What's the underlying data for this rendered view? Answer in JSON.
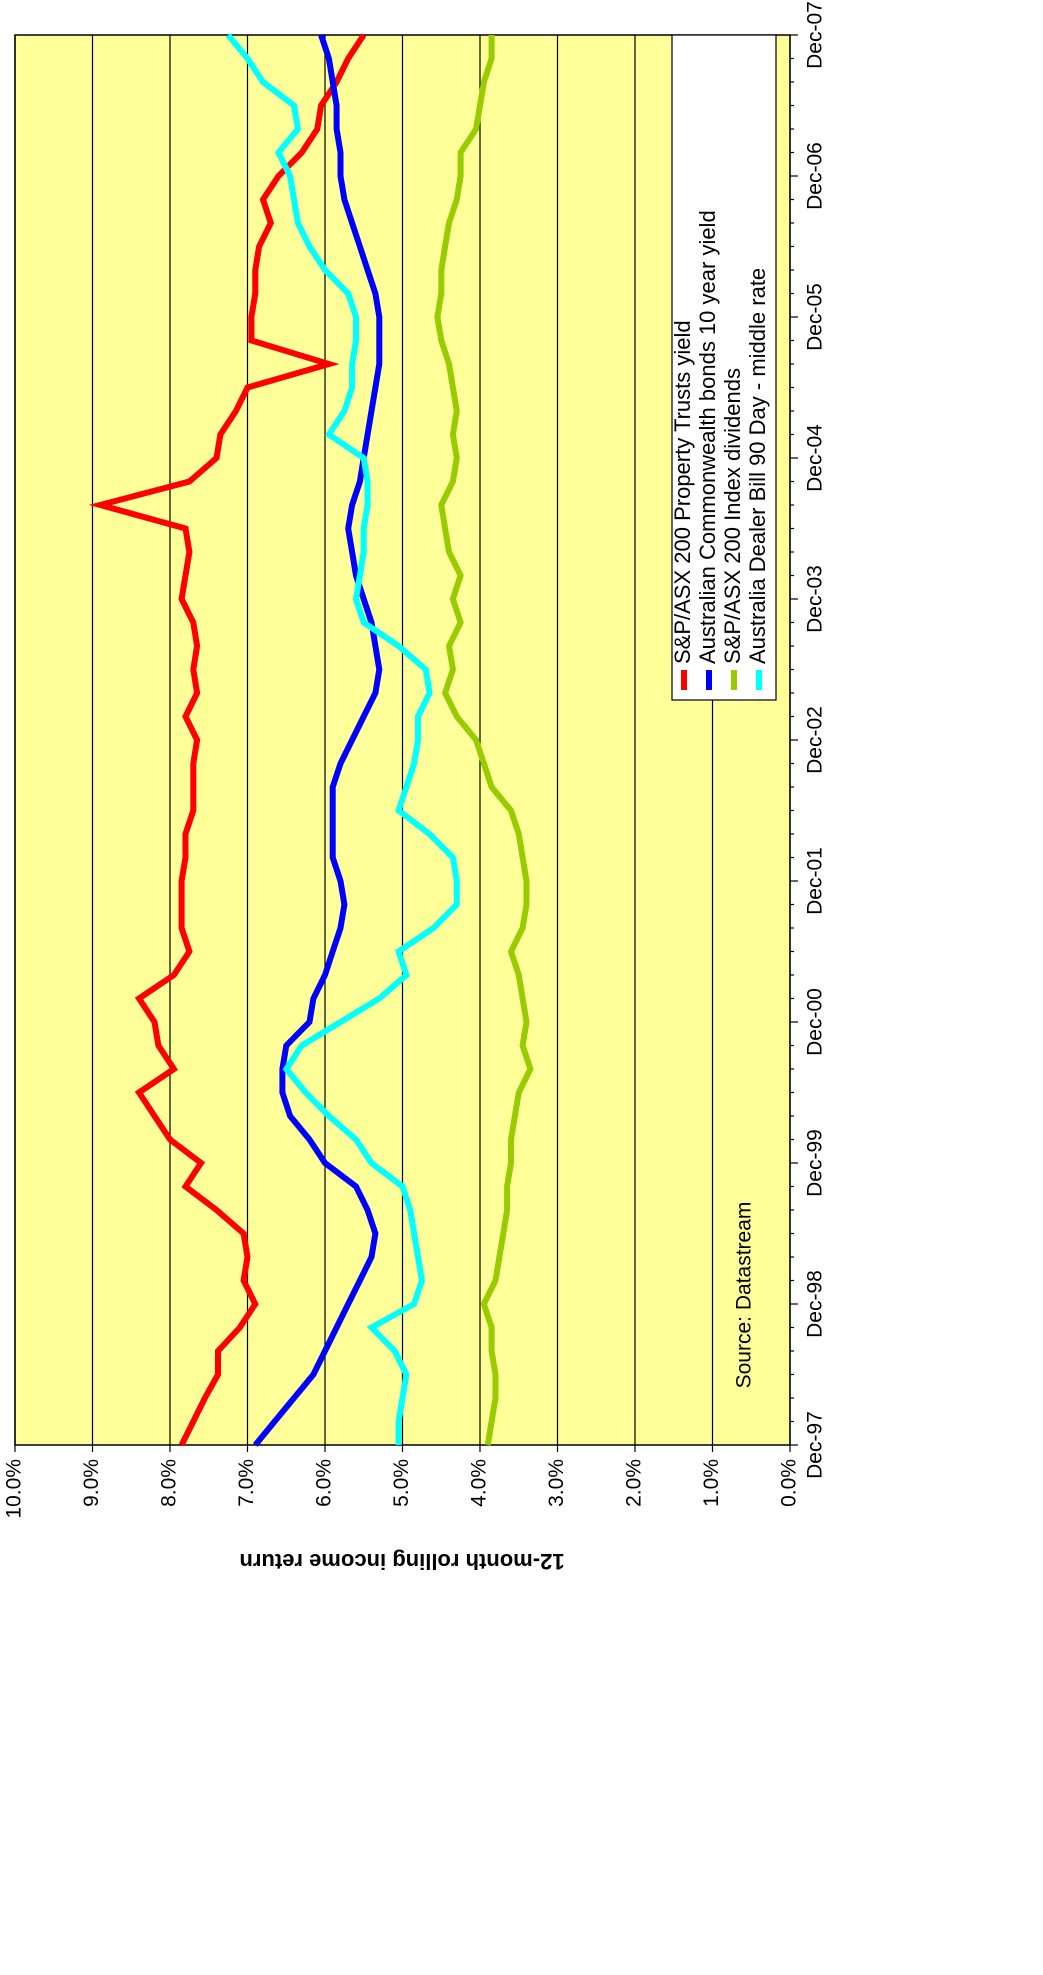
{
  "chart_data": {
    "type": "line",
    "source": "Source: Datastream",
    "y_label": "12-month rolling income return",
    "categories": [
      "Dec-97",
      null,
      null,
      null,
      null,
      null,
      "Dec-98",
      null,
      null,
      null,
      null,
      null,
      "Dec-99",
      null,
      null,
      null,
      null,
      null,
      "Dec-00",
      null,
      null,
      null,
      null,
      null,
      "Dec-01",
      null,
      null,
      null,
      null,
      null,
      "Dec-02",
      null,
      null,
      null,
      null,
      null,
      "Dec-03",
      null,
      null,
      null,
      null,
      null,
      "Dec-04",
      null,
      null,
      null,
      null,
      null,
      "Dec-05",
      null,
      null,
      null,
      null,
      null,
      "Dec-06",
      null,
      null,
      null,
      null,
      null,
      "Dec-07"
    ],
    "series": [
      {
        "name": "S&P/ASX 200 Property Trusts yield",
        "color": "#ff0000",
        "values": [
          7.85,
          7.7,
          7.55,
          7.38,
          7.38,
          7.1,
          6.9,
          7.05,
          7.0,
          7.05,
          7.4,
          7.8,
          7.6,
          8.0,
          8.2,
          8.4,
          7.95,
          8.15,
          8.2,
          8.4,
          7.95,
          7.75,
          7.85,
          7.85,
          7.85,
          7.8,
          7.8,
          7.7,
          7.7,
          7.7,
          7.65,
          7.8,
          7.65,
          7.7,
          7.65,
          7.7,
          7.85,
          7.8,
          7.75,
          7.8,
          8.9,
          7.75,
          7.4,
          7.35,
          7.15,
          7.0,
          5.95,
          6.95,
          6.95,
          6.9,
          6.9,
          6.85,
          6.7,
          6.8,
          6.6,
          6.3,
          6.1,
          6.05,
          5.85,
          5.7,
          5.5
        ]
      },
      {
        "name": "Australian Commonwealth bonds 10 year yield",
        "color": "#0000ff",
        "values": [
          6.9,
          6.65,
          6.4,
          6.15,
          6.0,
          5.85,
          5.7,
          5.55,
          5.4,
          5.35,
          5.45,
          5.6,
          6.0,
          6.2,
          6.45,
          6.55,
          6.55,
          6.5,
          6.2,
          6.15,
          6.0,
          5.9,
          5.8,
          5.75,
          5.8,
          5.9,
          5.9,
          5.9,
          5.9,
          5.8,
          5.65,
          5.5,
          5.35,
          5.3,
          5.35,
          5.4,
          5.5,
          5.6,
          5.65,
          5.7,
          5.65,
          5.55,
          5.5,
          5.45,
          5.4,
          5.35,
          5.3,
          5.3,
          5.3,
          5.35,
          5.45,
          5.55,
          5.65,
          5.75,
          5.8,
          5.8,
          5.85,
          5.85,
          5.9,
          5.95,
          6.05
        ]
      },
      {
        "name": "S&P/ASX 200 Index dividends",
        "color": "#99cc00",
        "values": [
          3.9,
          3.85,
          3.8,
          3.8,
          3.85,
          3.85,
          3.95,
          3.8,
          3.75,
          3.7,
          3.65,
          3.65,
          3.6,
          3.6,
          3.55,
          3.5,
          3.35,
          3.45,
          3.4,
          3.45,
          3.5,
          3.6,
          3.45,
          3.4,
          3.4,
          3.45,
          3.5,
          3.6,
          3.85,
          3.95,
          4.05,
          4.3,
          4.45,
          4.35,
          4.4,
          4.25,
          4.35,
          4.25,
          4.4,
          4.45,
          4.5,
          4.35,
          4.3,
          4.35,
          4.3,
          4.35,
          4.4,
          4.5,
          4.55,
          4.5,
          4.5,
          4.45,
          4.4,
          4.3,
          4.25,
          4.25,
          4.05,
          4.0,
          3.95,
          3.85,
          3.85
        ]
      },
      {
        "name": "Australia Dealer Bill 90 Day - middle rate",
        "color": "#00ffff",
        "values": [
          5.05,
          5.05,
          5.0,
          4.95,
          5.1,
          5.4,
          4.85,
          4.75,
          4.8,
          4.85,
          4.9,
          5.0,
          5.4,
          5.6,
          5.95,
          6.25,
          6.5,
          6.3,
          5.8,
          5.3,
          4.95,
          5.05,
          4.6,
          4.3,
          4.3,
          4.35,
          4.65,
          5.05,
          4.95,
          4.85,
          4.8,
          4.8,
          4.65,
          4.7,
          5.05,
          5.5,
          5.6,
          5.55,
          5.5,
          5.5,
          5.45,
          5.45,
          5.5,
          5.95,
          5.75,
          5.65,
          5.65,
          5.6,
          5.6,
          5.7,
          6.0,
          6.2,
          6.35,
          6.4,
          6.45,
          6.6,
          6.35,
          6.4,
          6.8,
          7.0,
          7.25
        ]
      }
    ],
    "ylim": [
      0,
      10
    ],
    "yticks": [
      {
        "value": 0,
        "label": "0.0%"
      },
      {
        "value": 1,
        "label": "1.0%"
      },
      {
        "value": 2,
        "label": "2.0%"
      },
      {
        "value": 3,
        "label": "3.0%"
      },
      {
        "value": 4,
        "label": "4.0%"
      },
      {
        "value": 5,
        "label": "5.0%"
      },
      {
        "value": 6,
        "label": "6.0%"
      },
      {
        "value": 7,
        "label": "7.0%"
      },
      {
        "value": 8,
        "label": "8.0%"
      },
      {
        "value": 9,
        "label": "9.0%"
      },
      {
        "value": 10,
        "label": "10.0%"
      }
    ],
    "grid": true,
    "legend": "lower right",
    "background": "#ffff99"
  }
}
